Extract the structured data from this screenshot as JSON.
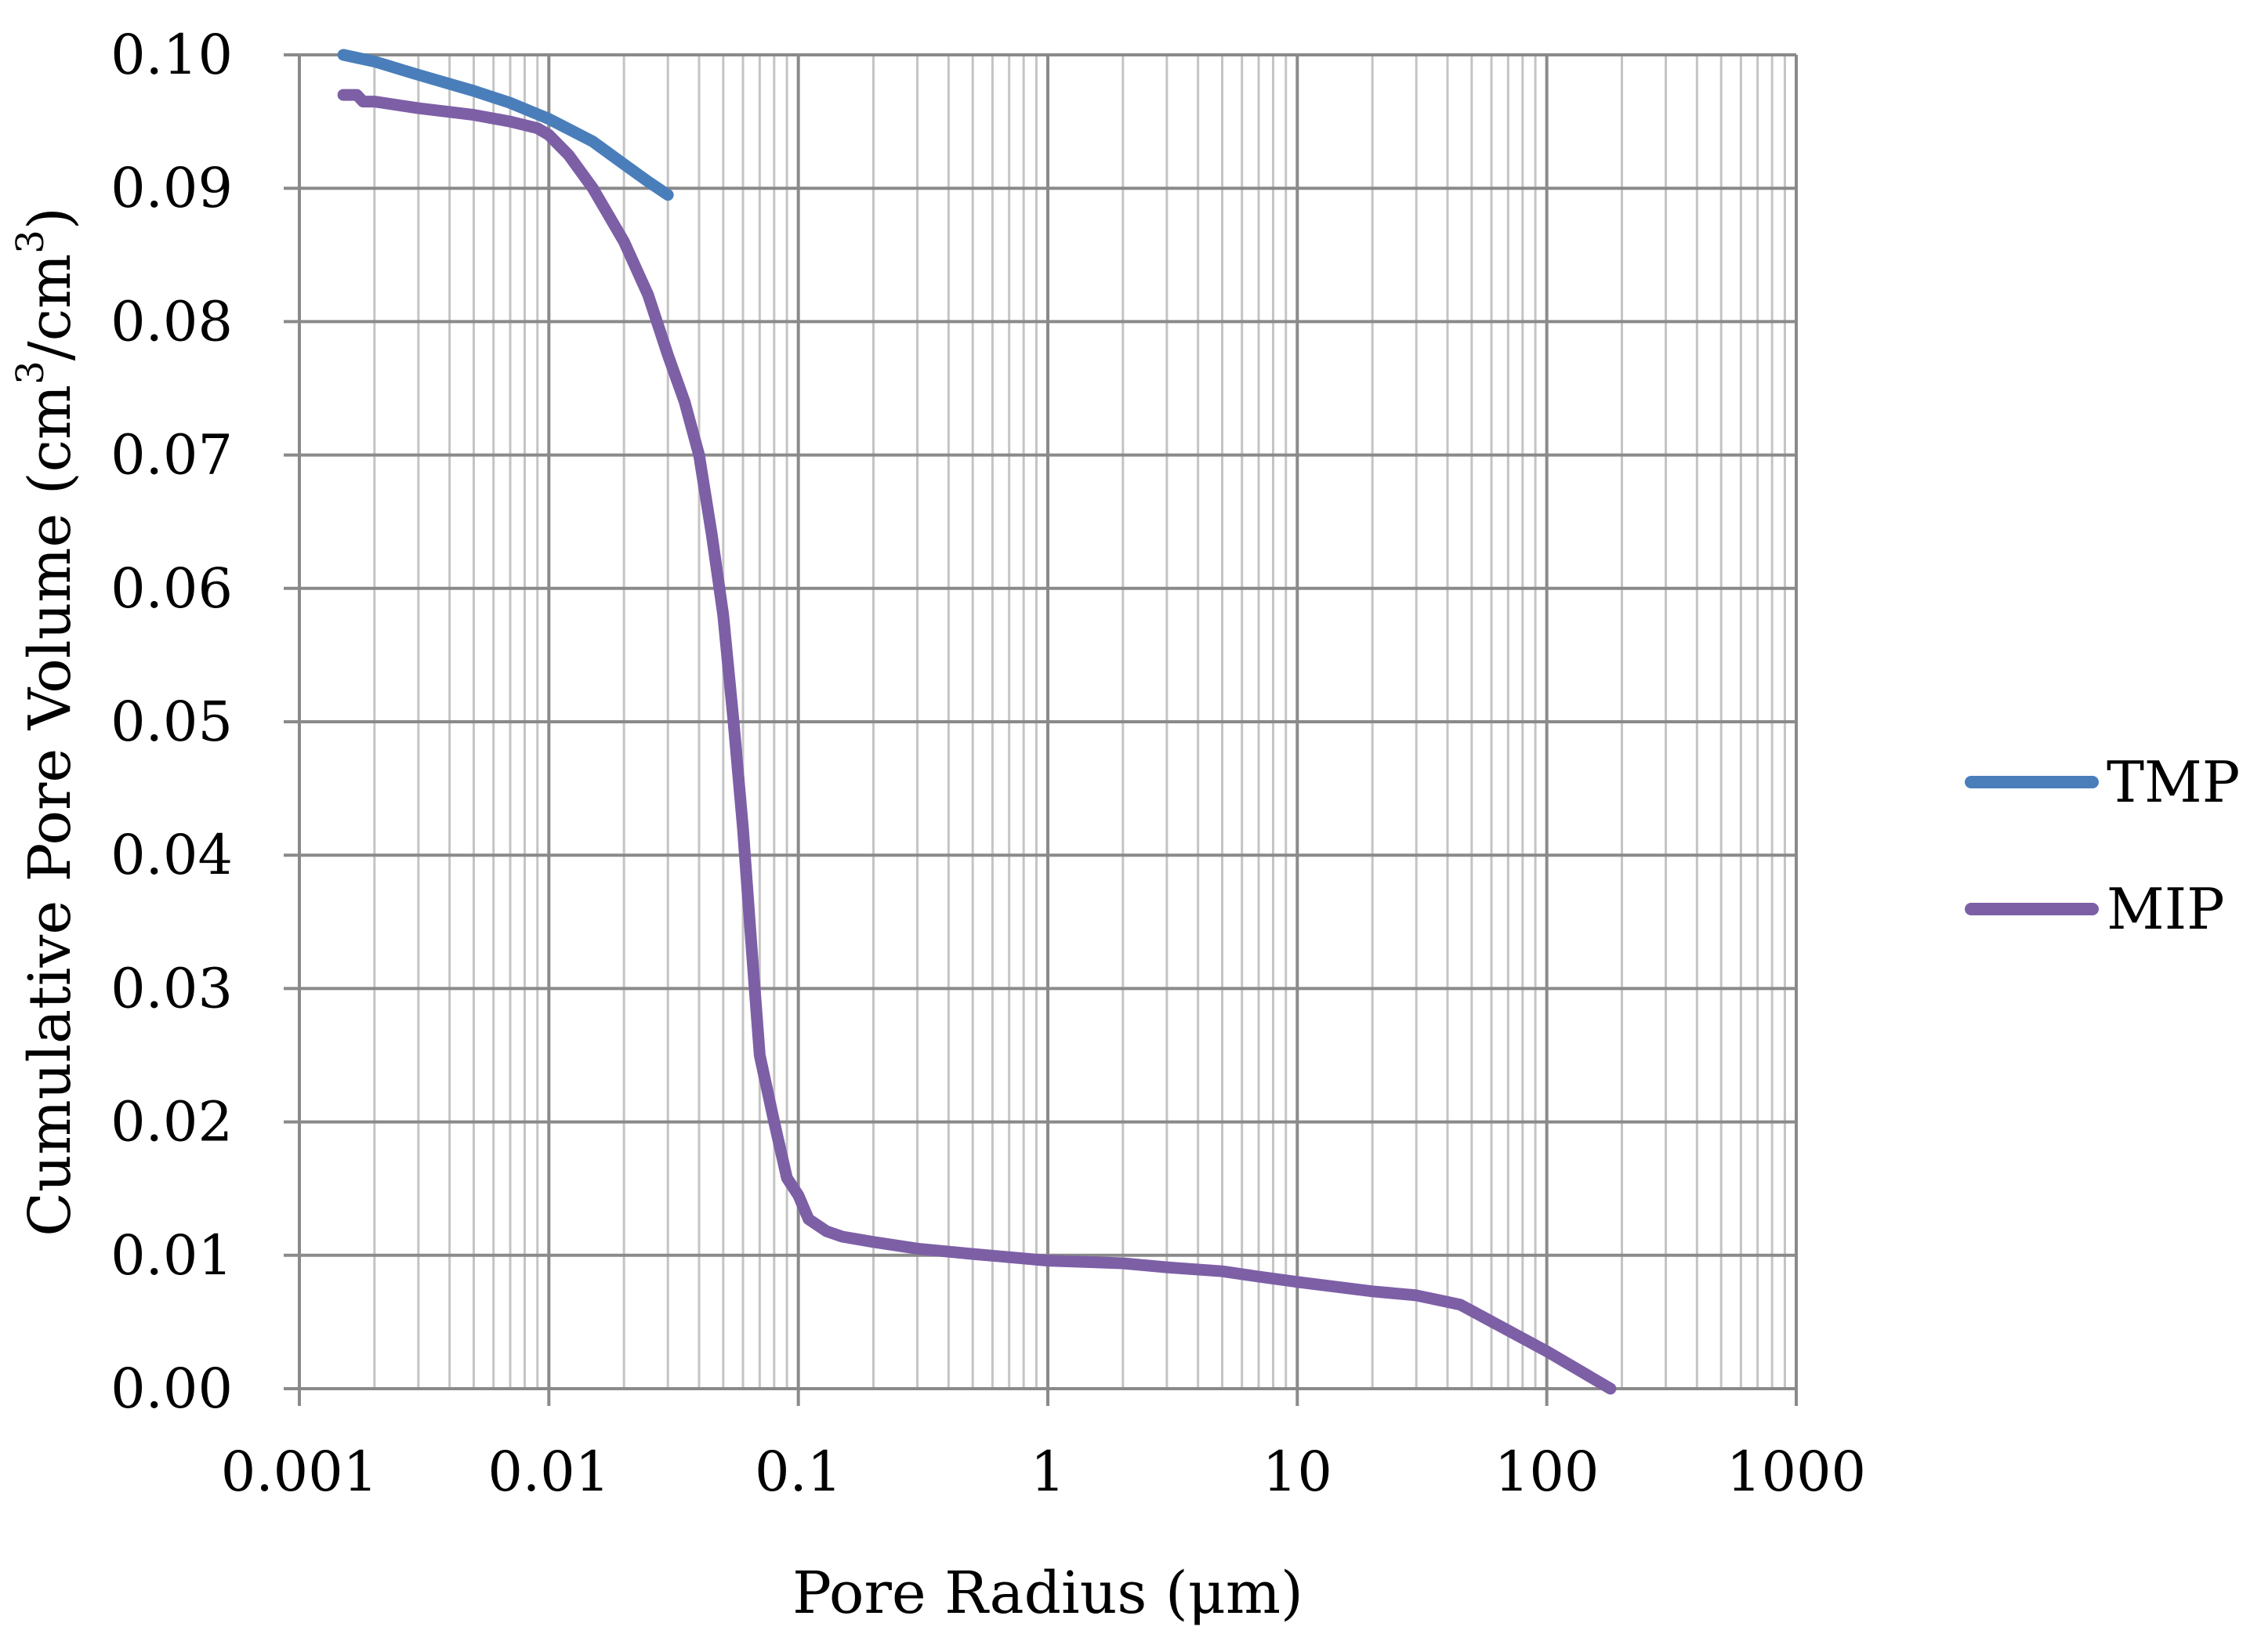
{
  "chart_data": {
    "type": "line",
    "xlabel": "Pore Radius (μm)",
    "ylabel": "Cumulative Pore Volume (cm³/cm³)",
    "ylabel_parts": [
      "Cumulative Pore Volume (cm",
      "3",
      "/cm",
      "3",
      ")"
    ],
    "xscale": "log",
    "xlim": [
      0.001,
      1000
    ],
    "ylim": [
      0,
      0.1
    ],
    "grid": true,
    "legend_position": "right",
    "x_tick_labels": [
      "0.001",
      "0.01",
      "0.1",
      "1",
      "10",
      "100",
      "1000"
    ],
    "x_ticks": [
      0.001,
      0.01,
      0.1,
      1,
      10,
      100,
      1000
    ],
    "y_tick_labels": [
      "0.00",
      "0.01",
      "0.02",
      "0.03",
      "0.04",
      "0.05",
      "0.06",
      "0.07",
      "0.08",
      "0.09",
      "0.10"
    ],
    "y_ticks": [
      0,
      0.01,
      0.02,
      0.03,
      0.04,
      0.05,
      0.06,
      0.07,
      0.08,
      0.09,
      0.1
    ],
    "series": [
      {
        "name": "TMP",
        "color": "#4a7ebb",
        "x": [
          0.0015,
          0.002,
          0.003,
          0.005,
          0.007,
          0.01,
          0.015,
          0.02,
          0.025,
          0.03
        ],
        "y": [
          0.1,
          0.0995,
          0.0985,
          0.0973,
          0.0964,
          0.0952,
          0.0935,
          0.0918,
          0.0905,
          0.0895
        ]
      },
      {
        "name": "MIP",
        "color": "#7d5fa6",
        "x": [
          0.0015,
          0.0017,
          0.0018,
          0.002,
          0.003,
          0.005,
          0.007,
          0.009,
          0.01,
          0.012,
          0.015,
          0.02,
          0.025,
          0.03,
          0.035,
          0.04,
          0.045,
          0.05,
          0.055,
          0.06,
          0.065,
          0.07,
          0.08,
          0.09,
          0.1,
          0.11,
          0.13,
          0.15,
          0.2,
          0.3,
          0.5,
          1,
          2,
          3,
          5,
          7,
          10,
          20,
          30,
          45,
          100,
          180
        ],
        "y": [
          0.097,
          0.097,
          0.0965,
          0.0965,
          0.096,
          0.0955,
          0.095,
          0.0945,
          0.094,
          0.0925,
          0.09,
          0.086,
          0.082,
          0.0775,
          0.074,
          0.07,
          0.064,
          0.058,
          0.05,
          0.042,
          0.033,
          0.025,
          0.02,
          0.0158,
          0.0145,
          0.0127,
          0.0118,
          0.0114,
          0.011,
          0.0105,
          0.0101,
          0.0096,
          0.0094,
          0.0091,
          0.0088,
          0.0084,
          0.008,
          0.0073,
          0.007,
          0.0063,
          0.0028,
          0.0
        ]
      }
    ]
  }
}
